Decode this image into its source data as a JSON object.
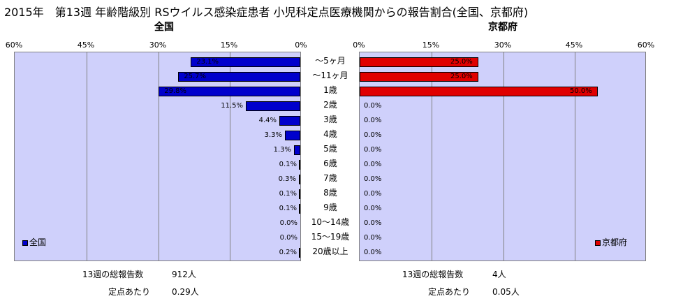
{
  "title": "2015年　第13週 年齢階級別 RSウイルス感染症患者 小児科定点医療機関からの報告割合(全国、京都府)",
  "chart_data": [
    {
      "type": "bar",
      "orientation": "horizontal",
      "direction": "right-to-left",
      "title": "全国",
      "series": [
        {
          "name": "全国",
          "color": "#0000cc",
          "values": [
            23.1,
            25.7,
            29.8,
            11.5,
            4.4,
            3.3,
            1.3,
            0.1,
            0.3,
            0.1,
            0.1,
            0.0,
            0.0,
            0.2
          ]
        }
      ],
      "labels": [
        "23.1%",
        "25.7%",
        "29.8%",
        "11.5%",
        "4.4%",
        "3.3%",
        "1.3%",
        "0.1%",
        "0.3%",
        "0.1%",
        "0.1%",
        "0.0%",
        "0.0%",
        "0.2%"
      ],
      "xlim": [
        0,
        60
      ],
      "ticks": [
        "60%",
        "45%",
        "30%",
        "15%",
        "0%"
      ],
      "legend": "bottom-left"
    },
    {
      "type": "bar",
      "orientation": "horizontal",
      "direction": "left-to-right",
      "title": "京都府",
      "series": [
        {
          "name": "京都府",
          "color": "#e00000",
          "values": [
            25.0,
            25.0,
            50.0,
            0.0,
            0.0,
            0.0,
            0.0,
            0.0,
            0.0,
            0.0,
            0.0,
            0.0,
            0.0,
            0.0
          ]
        }
      ],
      "labels": [
        "25.0%",
        "25.0%",
        "50.0%",
        "0.0%",
        "0.0%",
        "0.0%",
        "0.0%",
        "0.0%",
        "0.0%",
        "0.0%",
        "0.0%",
        "0.0%",
        "0.0%",
        "0.0%"
      ],
      "xlim": [
        0,
        60
      ],
      "ticks": [
        "0%",
        "15%",
        "30%",
        "45%",
        "60%"
      ],
      "legend": "bottom-right"
    }
  ],
  "categories": [
    "～5ヶ月",
    "～11ヶ月",
    "1歳",
    "2歳",
    "3歳",
    "4歳",
    "5歳",
    "6歳",
    "7歳",
    "8歳",
    "9歳",
    "10～14歳",
    "15～19歳",
    "20歳以上"
  ],
  "footer": {
    "national": {
      "total_label": "13週の総報告数",
      "total_value": "912人",
      "per_label": "定点あたり",
      "per_value": "0.29人"
    },
    "kyoto": {
      "total_label": "13週の総報告数",
      "total_value": "4人",
      "per_label": "定点あたり",
      "per_value": "0.05人"
    }
  }
}
